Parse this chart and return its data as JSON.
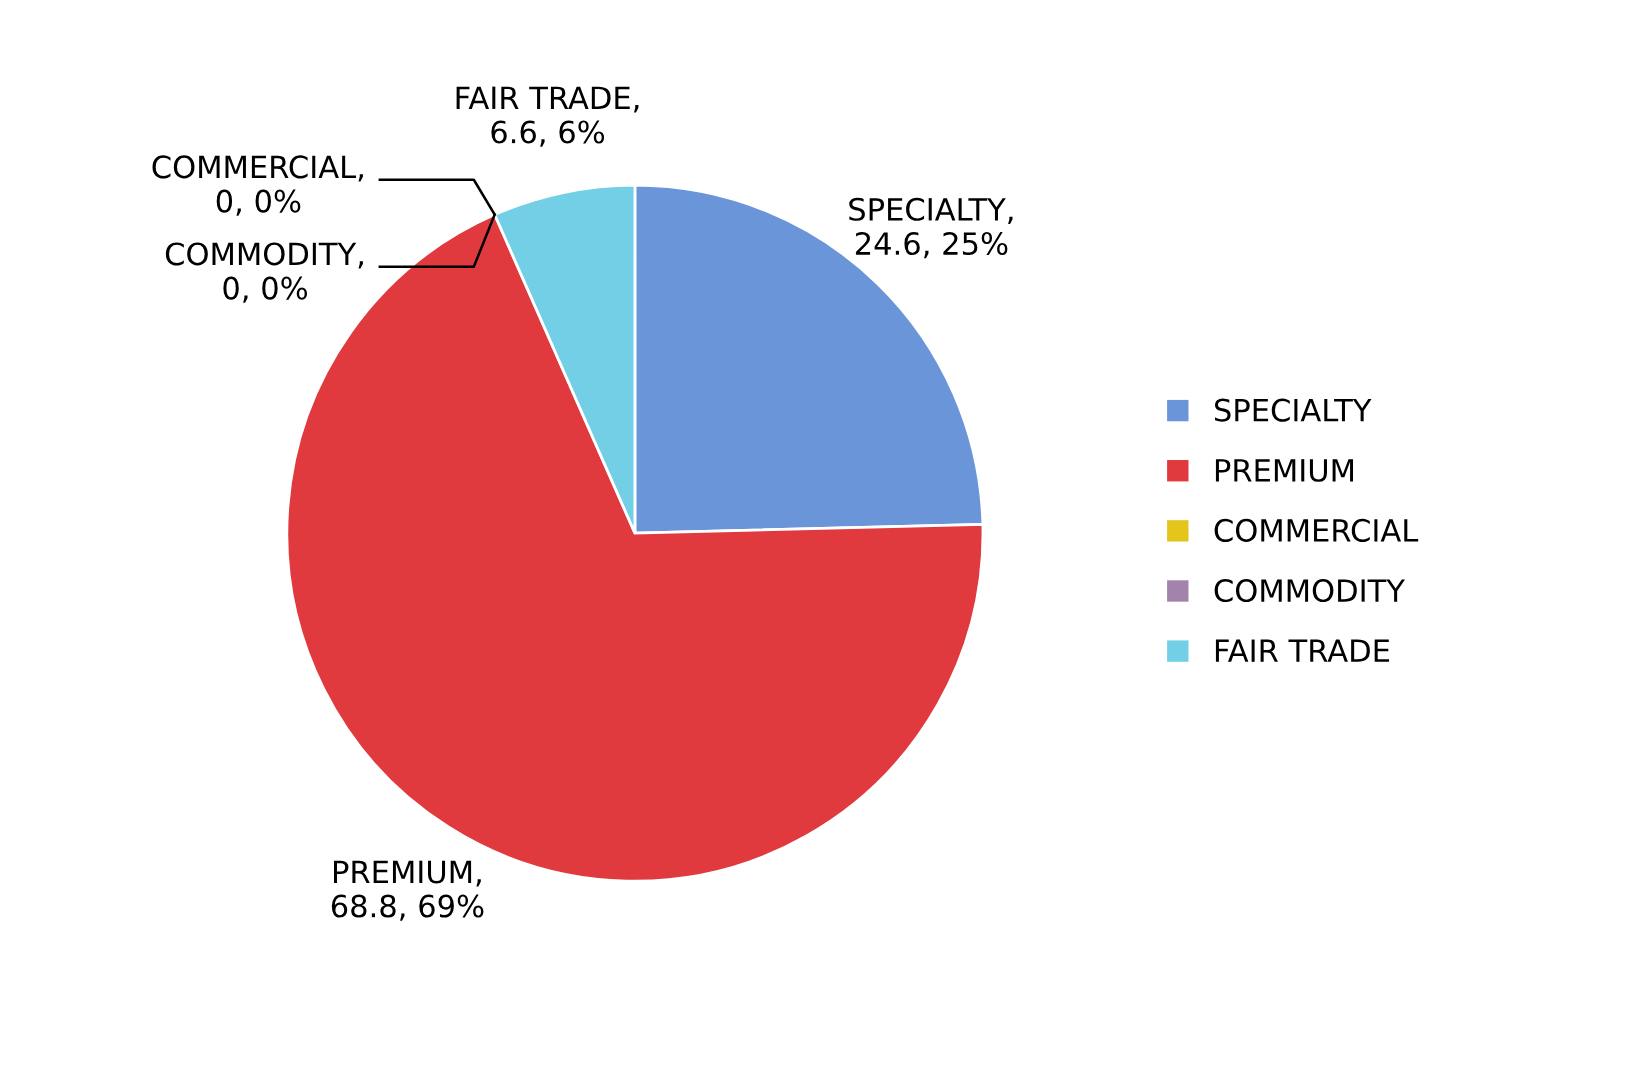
{
  "chart_data": {
    "type": "pie",
    "categories": [
      "SPECIALTY",
      "PREMIUM",
      "COMMERCIAL",
      "COMMODITY",
      "FAIR TRADE"
    ],
    "values": [
      24.6,
      68.8,
      0,
      0,
      6.6
    ],
    "colors": [
      "#6a95d8",
      "#e0393e",
      "#e4c51c",
      "#a383ab",
      "#72cfe6"
    ],
    "value_labels": [
      "SPECIALTY,\n24.6, 25%",
      "PREMIUM,\n68.8, 69%",
      "COMMERCIAL,\n0, 0%",
      "COMMODITY,\n0, 0%",
      "FAIR TRADE,\n6.6, 6%"
    ],
    "legend": "right"
  }
}
